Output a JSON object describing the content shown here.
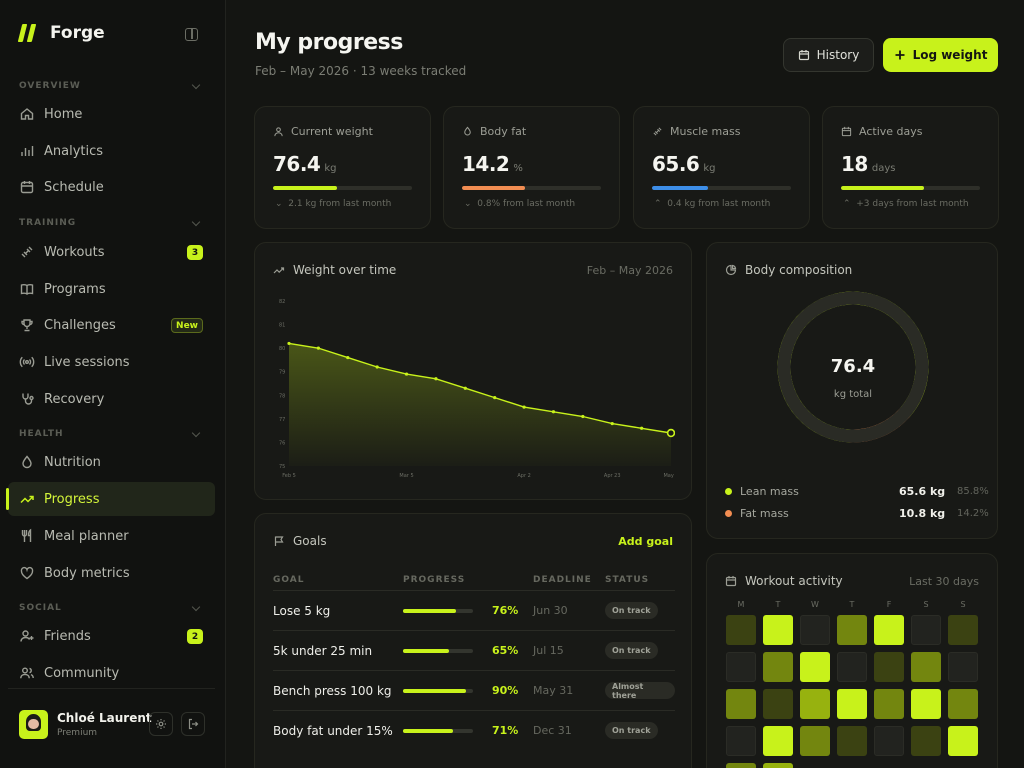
{
  "app": {
    "name": "Forge"
  },
  "colors": {
    "accent": "#c8f21b",
    "fat": "#f28d52",
    "muscle": "#3d8ee8",
    "background": "#141512"
  },
  "sidebar": {
    "sections": [
      {
        "label": "OVERVIEW"
      },
      {
        "label": "TRAINING"
      },
      {
        "label": "HEALTH"
      },
      {
        "label": "SOCIAL"
      }
    ],
    "items": [
      {
        "label": "Home",
        "icon": "home-icon"
      },
      {
        "label": "Analytics",
        "icon": "bar-chart-icon"
      },
      {
        "label": "Schedule",
        "icon": "calendar-icon"
      },
      {
        "label": "Workouts",
        "icon": "dumbbell-icon",
        "badge": "3"
      },
      {
        "label": "Programs",
        "icon": "book-icon"
      },
      {
        "label": "Challenges",
        "icon": "trophy-icon",
        "badge": "New"
      },
      {
        "label": "Live sessions",
        "icon": "broadcast-icon"
      },
      {
        "label": "Recovery",
        "icon": "stethoscope-icon"
      },
      {
        "label": "Nutrition",
        "icon": "drop-icon"
      },
      {
        "label": "Progress",
        "icon": "trending-up-icon",
        "active": true
      },
      {
        "label": "Meal planner",
        "icon": "utensils-icon"
      },
      {
        "label": "Body metrics",
        "icon": "heart-icon"
      },
      {
        "label": "Friends",
        "icon": "user-plus-icon",
        "badge": "2"
      },
      {
        "label": "Community",
        "icon": "users-icon"
      }
    ],
    "user": {
      "name": "Chloé Laurent",
      "role": "Premium"
    }
  },
  "header": {
    "title": "My progress",
    "subtitle": "Feb – May 2026  ·  13 weeks tracked",
    "history_label": "History",
    "log_label": "Log weight"
  },
  "stats": [
    {
      "label": "Current weight",
      "value": "76.4",
      "unit": "kg",
      "progress": 0.46,
      "color": "#c8f21b",
      "note": "2.1 kg from last month",
      "icon": "person-icon"
    },
    {
      "label": "Body fat",
      "value": "14.2",
      "unit": "%",
      "progress": 0.45,
      "color": "#f28d52",
      "note": "0.8% from last month",
      "icon": "drop-icon"
    },
    {
      "label": "Muscle mass",
      "value": "65.6",
      "unit": "kg",
      "progress": 0.4,
      "color": "#3d8ee8",
      "note": "0.4 kg from last month",
      "icon": "dumbbell-icon"
    },
    {
      "label": "Active days",
      "value": "18",
      "unit": "days",
      "progress": 0.6,
      "color": "#c8f21b",
      "note": "+3 days from last month",
      "icon": "calendar-icon"
    }
  ],
  "weight_card": {
    "title": "Weight over time",
    "range": "Feb – May 2026"
  },
  "chart_data": {
    "type": "area",
    "title": "Weight over time",
    "x": [
      "Feb 5",
      "Feb 12",
      "Feb 19",
      "Feb 26",
      "Mar 5",
      "Mar 12",
      "Mar 19",
      "Mar 26",
      "Apr 2",
      "Apr 9",
      "Apr 16",
      "Apr 23",
      "Apr 30",
      "May 7"
    ],
    "xticks": [
      "Feb 5",
      "Mar 5",
      "Apr 2",
      "Apr 23",
      "May 7"
    ],
    "yticks": [
      "82",
      "81",
      "80",
      "79",
      "78",
      "77",
      "76",
      "75"
    ],
    "ylim": [
      75,
      82
    ],
    "series": [
      {
        "values": [
          80.2,
          80.0,
          79.6,
          79.2,
          78.9,
          78.7,
          78.3,
          77.9,
          77.5,
          77.3,
          77.1,
          76.8,
          76.6,
          76.4
        ]
      }
    ],
    "grid": false
  },
  "composition": {
    "title": "Body composition",
    "total": "76.4",
    "total_label": "kg total",
    "items": [
      {
        "label": "Lean mass",
        "value": "65.6 kg",
        "pct": "85.8%",
        "fraction": 0.858,
        "color": "#c8f21b"
      },
      {
        "label": "Fat mass",
        "value": "10.8 kg",
        "pct": "14.2%",
        "fraction": 0.142,
        "color": "#f28d52"
      }
    ]
  },
  "goals": {
    "title": "Goals",
    "add_label": "Add goal",
    "columns": [
      "GOAL",
      "PROGRESS",
      "DEADLINE",
      "STATUS"
    ],
    "rows": [
      {
        "name": "Lose 5 kg",
        "progress": 0.76,
        "pct": "76%",
        "deadline": "Jun 30",
        "status": "On track"
      },
      {
        "name": "5k under 25 min",
        "progress": 0.65,
        "pct": "65%",
        "deadline": "Jul 15",
        "status": "On track"
      },
      {
        "name": "Bench press 100 kg",
        "progress": 0.9,
        "pct": "90%",
        "deadline": "May 31",
        "status": "Almost there"
      },
      {
        "name": "Body fat under 15%",
        "progress": 0.71,
        "pct": "71%",
        "deadline": "Dec 31",
        "status": "On track"
      }
    ]
  },
  "activity": {
    "title": "Workout activity",
    "range": "Last 30 days",
    "days": [
      "M",
      "T",
      "W",
      "T",
      "F",
      "S",
      "S"
    ],
    "levels": [
      1,
      4,
      0,
      2,
      4,
      0,
      1,
      0,
      2,
      4,
      0,
      1,
      2,
      0,
      2,
      1,
      3,
      4,
      2,
      4,
      2,
      0,
      4,
      2,
      1,
      0,
      1,
      4,
      2,
      3
    ]
  }
}
